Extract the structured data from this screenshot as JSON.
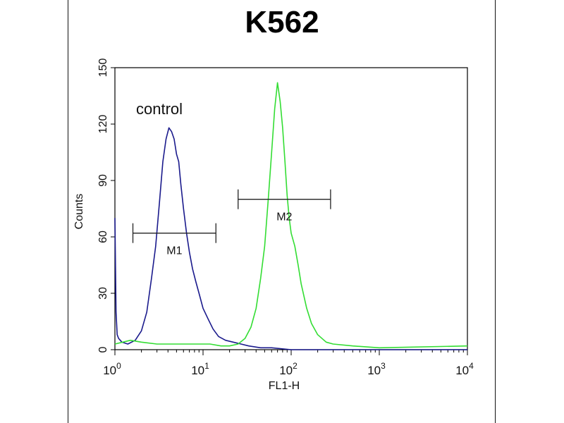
{
  "chart_data": {
    "type": "line",
    "title": "K562",
    "xlabel": "FL1-H",
    "ylabel": "Counts",
    "xscale": "log",
    "xlim": [
      1,
      10000
    ],
    "ylim": [
      0,
      150
    ],
    "yticks": [
      "0",
      "30",
      "60",
      "90",
      "120",
      "150"
    ],
    "xticks": [
      {
        "base": "10",
        "exp": "0",
        "value": 1
      },
      {
        "base": "10",
        "exp": "1",
        "value": 10
      },
      {
        "base": "10",
        "exp": "2",
        "value": 100
      },
      {
        "base": "10",
        "exp": "3",
        "value": 1000
      },
      {
        "base": "10",
        "exp": "4",
        "value": 10000
      }
    ],
    "annotation": "control",
    "series": [
      {
        "color": "#1a1a8c",
        "x": [
          1.0,
          1.03,
          1.06,
          1.1,
          1.15,
          1.2,
          1.4,
          1.7,
          2.0,
          2.3,
          2.6,
          2.9,
          3.2,
          3.5,
          3.8,
          4.1,
          4.4,
          4.7,
          5.0,
          5.3,
          5.6,
          6.0,
          6.5,
          7.0,
          7.6,
          8.3,
          9.0,
          10,
          11.5,
          13,
          15,
          18,
          22,
          27,
          33,
          45,
          60,
          100,
          200,
          500,
          1000,
          10000
        ],
        "y": [
          70,
          20,
          8,
          6,
          5,
          4,
          3,
          5,
          10,
          20,
          38,
          55,
          78,
          100,
          112,
          118,
          116,
          112,
          104,
          100,
          88,
          75,
          62,
          52,
          43,
          36,
          30,
          22,
          16,
          11,
          7,
          5,
          4,
          3,
          2,
          1,
          1,
          0,
          0,
          0,
          0,
          0
        ]
      },
      {
        "color": "#33dd33",
        "x": [
          1.0,
          1.5,
          2.0,
          3.0,
          5.0,
          8.0,
          12,
          16,
          20,
          25,
          30,
          35,
          40,
          45,
          50,
          55,
          60,
          65,
          70,
          75,
          80,
          85,
          90,
          95,
          100,
          110,
          120,
          130,
          150,
          170,
          200,
          250,
          300,
          500,
          1000,
          10000
        ],
        "y": [
          3,
          5,
          4,
          3,
          3,
          3,
          3,
          2,
          2,
          3,
          6,
          12,
          22,
          38,
          55,
          80,
          105,
          128,
          142,
          132,
          118,
          100,
          82,
          70,
          62,
          55,
          45,
          35,
          22,
          14,
          8,
          4,
          3,
          2,
          1,
          2
        ]
      }
    ],
    "markers": [
      {
        "label": "M1",
        "x_start": 1.6,
        "x_end": 14,
        "y": 62
      },
      {
        "label": "M2",
        "x_start": 25,
        "x_end": 280,
        "y": 80
      }
    ]
  }
}
